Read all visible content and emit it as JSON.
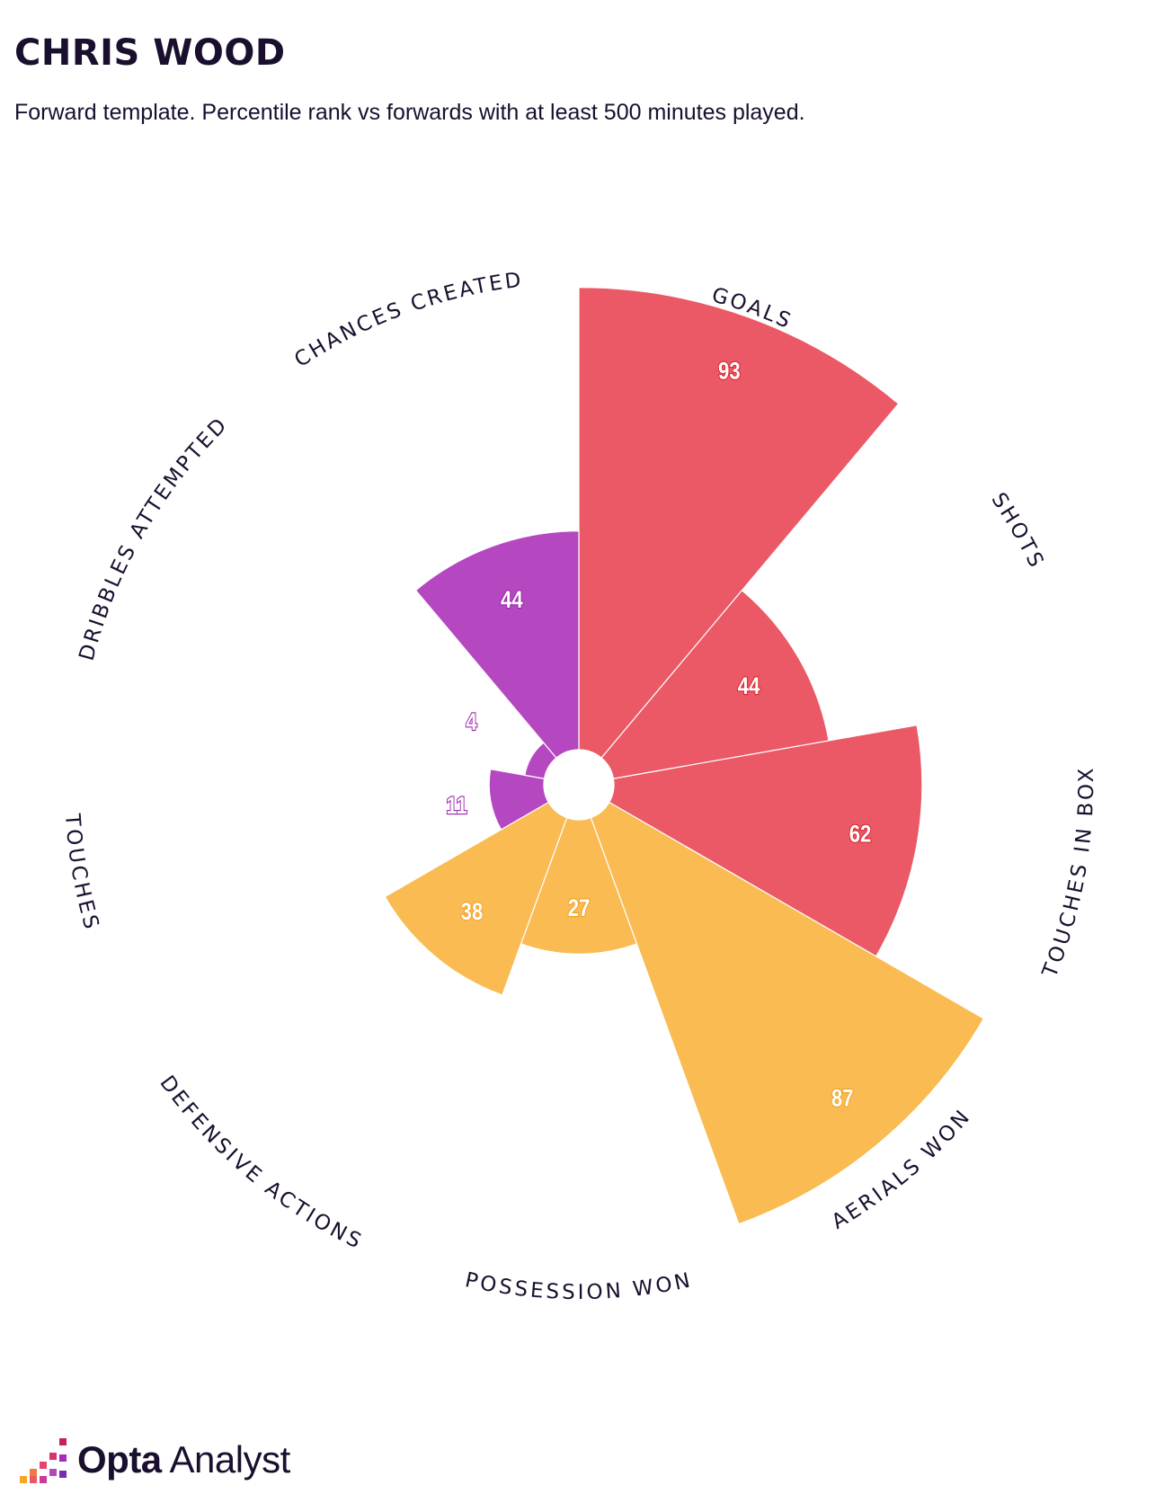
{
  "header": {
    "title": "CHRIS WOOD",
    "subtitle": "Forward template. Percentile rank vs forwards with at least 500 minutes played."
  },
  "chart_data": {
    "type": "polar-bar",
    "title": "CHRIS WOOD",
    "subtitle": "Forward template. Percentile rank vs forwards with at least 500 minutes played.",
    "rlim": [
      0,
      100
    ],
    "categories": [
      "GOALS",
      "SHOTS",
      "TOUCHES IN BOX",
      "AERIALS WON",
      "POSSESSION WON",
      "DEFENSIVE ACTIONS",
      "TOUCHES",
      "DRIBBLES ATTEMPTED",
      "CHANCES CREATED"
    ],
    "values": [
      93,
      44,
      62,
      87,
      27,
      38,
      11,
      4,
      44
    ],
    "groups": [
      "attacking",
      "attacking",
      "attacking",
      "defending",
      "defending",
      "defending",
      "possession",
      "possession",
      "possession"
    ],
    "colors": {
      "attacking": "#ea5965",
      "defending": "#f9bb52",
      "possession": "#b548c0",
      "attacking_label": "#d9242f",
      "defending_label": "#f0a020",
      "possession_label": "#9a22a8"
    }
  },
  "footer": {
    "logo_bold": "Opta",
    "logo_regular": "Analyst",
    "logo_icon": "opta-pixel-steps-icon"
  }
}
